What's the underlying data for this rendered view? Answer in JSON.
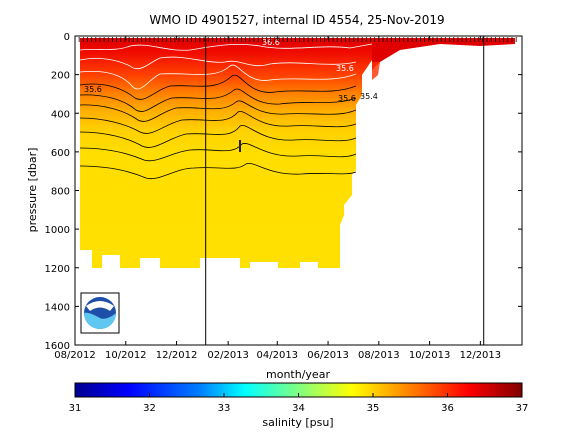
{
  "chart_data": {
    "type": "heatmap",
    "title": "WMO ID 4901527, internal ID 4554, 25-Nov-2019",
    "xlabel": "month/year",
    "ylabel": "pressure [dbar]",
    "x_tick_labels": [
      "08/2012",
      "10/2012",
      "12/2012",
      "02/2013",
      "04/2013",
      "06/2013",
      "08/2013",
      "10/2013",
      "12/2013"
    ],
    "y_tick_labels": [
      "0",
      "200",
      "400",
      "600",
      "800",
      "1000",
      "1200",
      "1400",
      "1600"
    ],
    "y_range": [
      0,
      1600
    ],
    "y_inverted": true,
    "x_range": [
      "2012-08-01",
      "2014-01-20"
    ],
    "grid": false,
    "colorbar": {
      "label": "salinity [psu]",
      "range": [
        31,
        37
      ],
      "tick_labels": [
        "31",
        "32",
        "33",
        "34",
        "35",
        "36",
        "37"
      ],
      "colormap": [
        "#00008f",
        "#0000ff",
        "#0080ff",
        "#00ffff",
        "#80ff80",
        "#ffff00",
        "#ff8000",
        "#ff0000",
        "#800000"
      ]
    },
    "contour_labels": [
      "35.6",
      "35.6",
      "35.4",
      "36.6",
      "35.6"
    ],
    "vertical_lines": [
      "2013-01-05",
      "2013-12-05"
    ],
    "data_coverage": {
      "start": "2012-08-01",
      "end": "2013-07-25",
      "max_pressure": 1200
    },
    "salinity_profile": [
      {
        "pressure": 0,
        "salinity": 36.7
      },
      {
        "pressure": 100,
        "salinity": 36.3
      },
      {
        "pressure": 200,
        "salinity": 36.0
      },
      {
        "pressure": 300,
        "salinity": 35.6
      },
      {
        "pressure": 400,
        "salinity": 35.4
      },
      {
        "pressure": 500,
        "salinity": 35.2
      },
      {
        "pressure": 600,
        "salinity": 35.1
      },
      {
        "pressure": 800,
        "salinity": 35.0
      },
      {
        "pressure": 1200,
        "salinity": 35.0
      }
    ]
  },
  "logo": {
    "text": "NOAA",
    "icon": "noaa-logo-icon"
  }
}
